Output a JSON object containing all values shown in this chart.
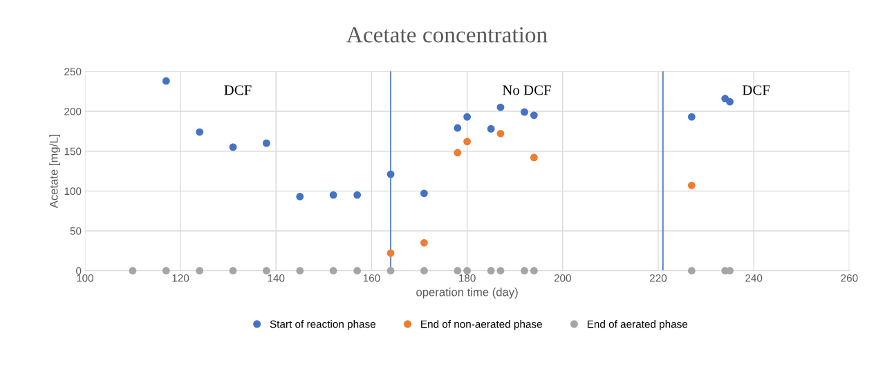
{
  "chart_data": {
    "type": "scatter",
    "title": "Acetate concentration",
    "xlabel": "operation time (day)",
    "ylabel": "Acetate [mg/L]",
    "xlim": [
      100,
      260
    ],
    "xticks": [
      100,
      120,
      140,
      160,
      180,
      200,
      220,
      240,
      260
    ],
    "ylim": [
      0,
      250
    ],
    "yticks": [
      0,
      50,
      100,
      150,
      200,
      250
    ],
    "grid": true,
    "legend": "bottom",
    "marker": "circle",
    "series": [
      {
        "name": "Start of reaction phase",
        "color": "#4472c4",
        "x": [
          117,
          124,
          131,
          138,
          145,
          152,
          157,
          164,
          171,
          178,
          180,
          185,
          187,
          192,
          194,
          227,
          234,
          235
        ],
        "values": [
          238,
          174,
          155,
          160,
          93,
          95,
          95,
          121,
          97,
          179,
          193,
          178,
          205,
          199,
          195,
          193,
          216,
          212
        ]
      },
      {
        "name": "End of non-aerated phase",
        "color": "#ed7d31",
        "x": [
          164,
          171,
          178,
          180,
          187,
          194,
          227
        ],
        "values": [
          22,
          35,
          148,
          162,
          172,
          142,
          107
        ]
      },
      {
        "name": "End of aerated phase",
        "color": "#a5a5a5",
        "x": [
          110,
          117,
          124,
          131,
          138,
          145,
          152,
          157,
          164,
          171,
          178,
          180,
          185,
          187,
          192,
          194,
          227,
          234,
          235
        ],
        "values": [
          0,
          0,
          0,
          0,
          0,
          0,
          0,
          0,
          0,
          0,
          0,
          0,
          0,
          0,
          0,
          0,
          0,
          0,
          0
        ]
      }
    ],
    "ref_lines": [
      {
        "axis": "x",
        "value": 164,
        "color": "#4472c4"
      },
      {
        "axis": "x",
        "value": 221,
        "color": "#4472c4"
      }
    ],
    "annotations": [
      "DCF",
      "No DCF",
      "DCF"
    ]
  }
}
